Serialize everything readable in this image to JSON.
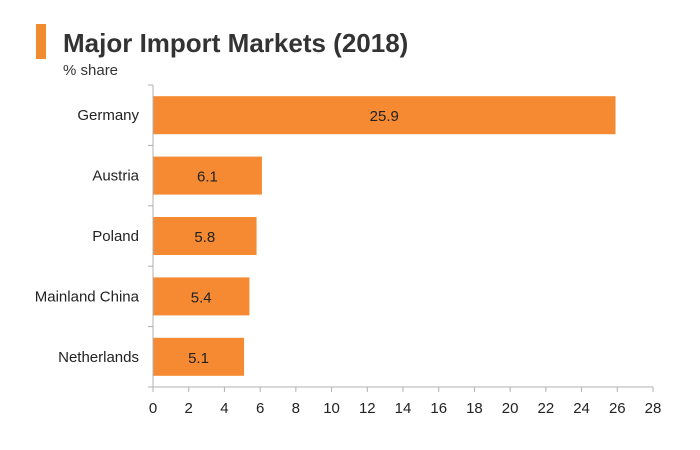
{
  "title": "Major Import Markets (2018)",
  "subtitle": "% share",
  "colors": {
    "accent": "#f28a30",
    "bar": "#f58a32",
    "axis": "#b0b0b0",
    "text": "#222222"
  },
  "chart_data": {
    "type": "bar",
    "orientation": "horizontal",
    "title": "Major Import Markets (2018)",
    "subtitle": "% share",
    "categories": [
      "Germany",
      "Austria",
      "Poland",
      "Mainland China",
      "Netherlands"
    ],
    "values": [
      25.9,
      6.1,
      5.8,
      5.4,
      5.1
    ],
    "data_labels": [
      "25.9",
      "6.1",
      "5.8",
      "5.4",
      "5.1"
    ],
    "xlim": [
      0,
      28
    ],
    "xticks": [
      0,
      2,
      4,
      6,
      8,
      10,
      12,
      14,
      16,
      18,
      20,
      22,
      24,
      26,
      28
    ],
    "grid": false,
    "legend": "none"
  }
}
